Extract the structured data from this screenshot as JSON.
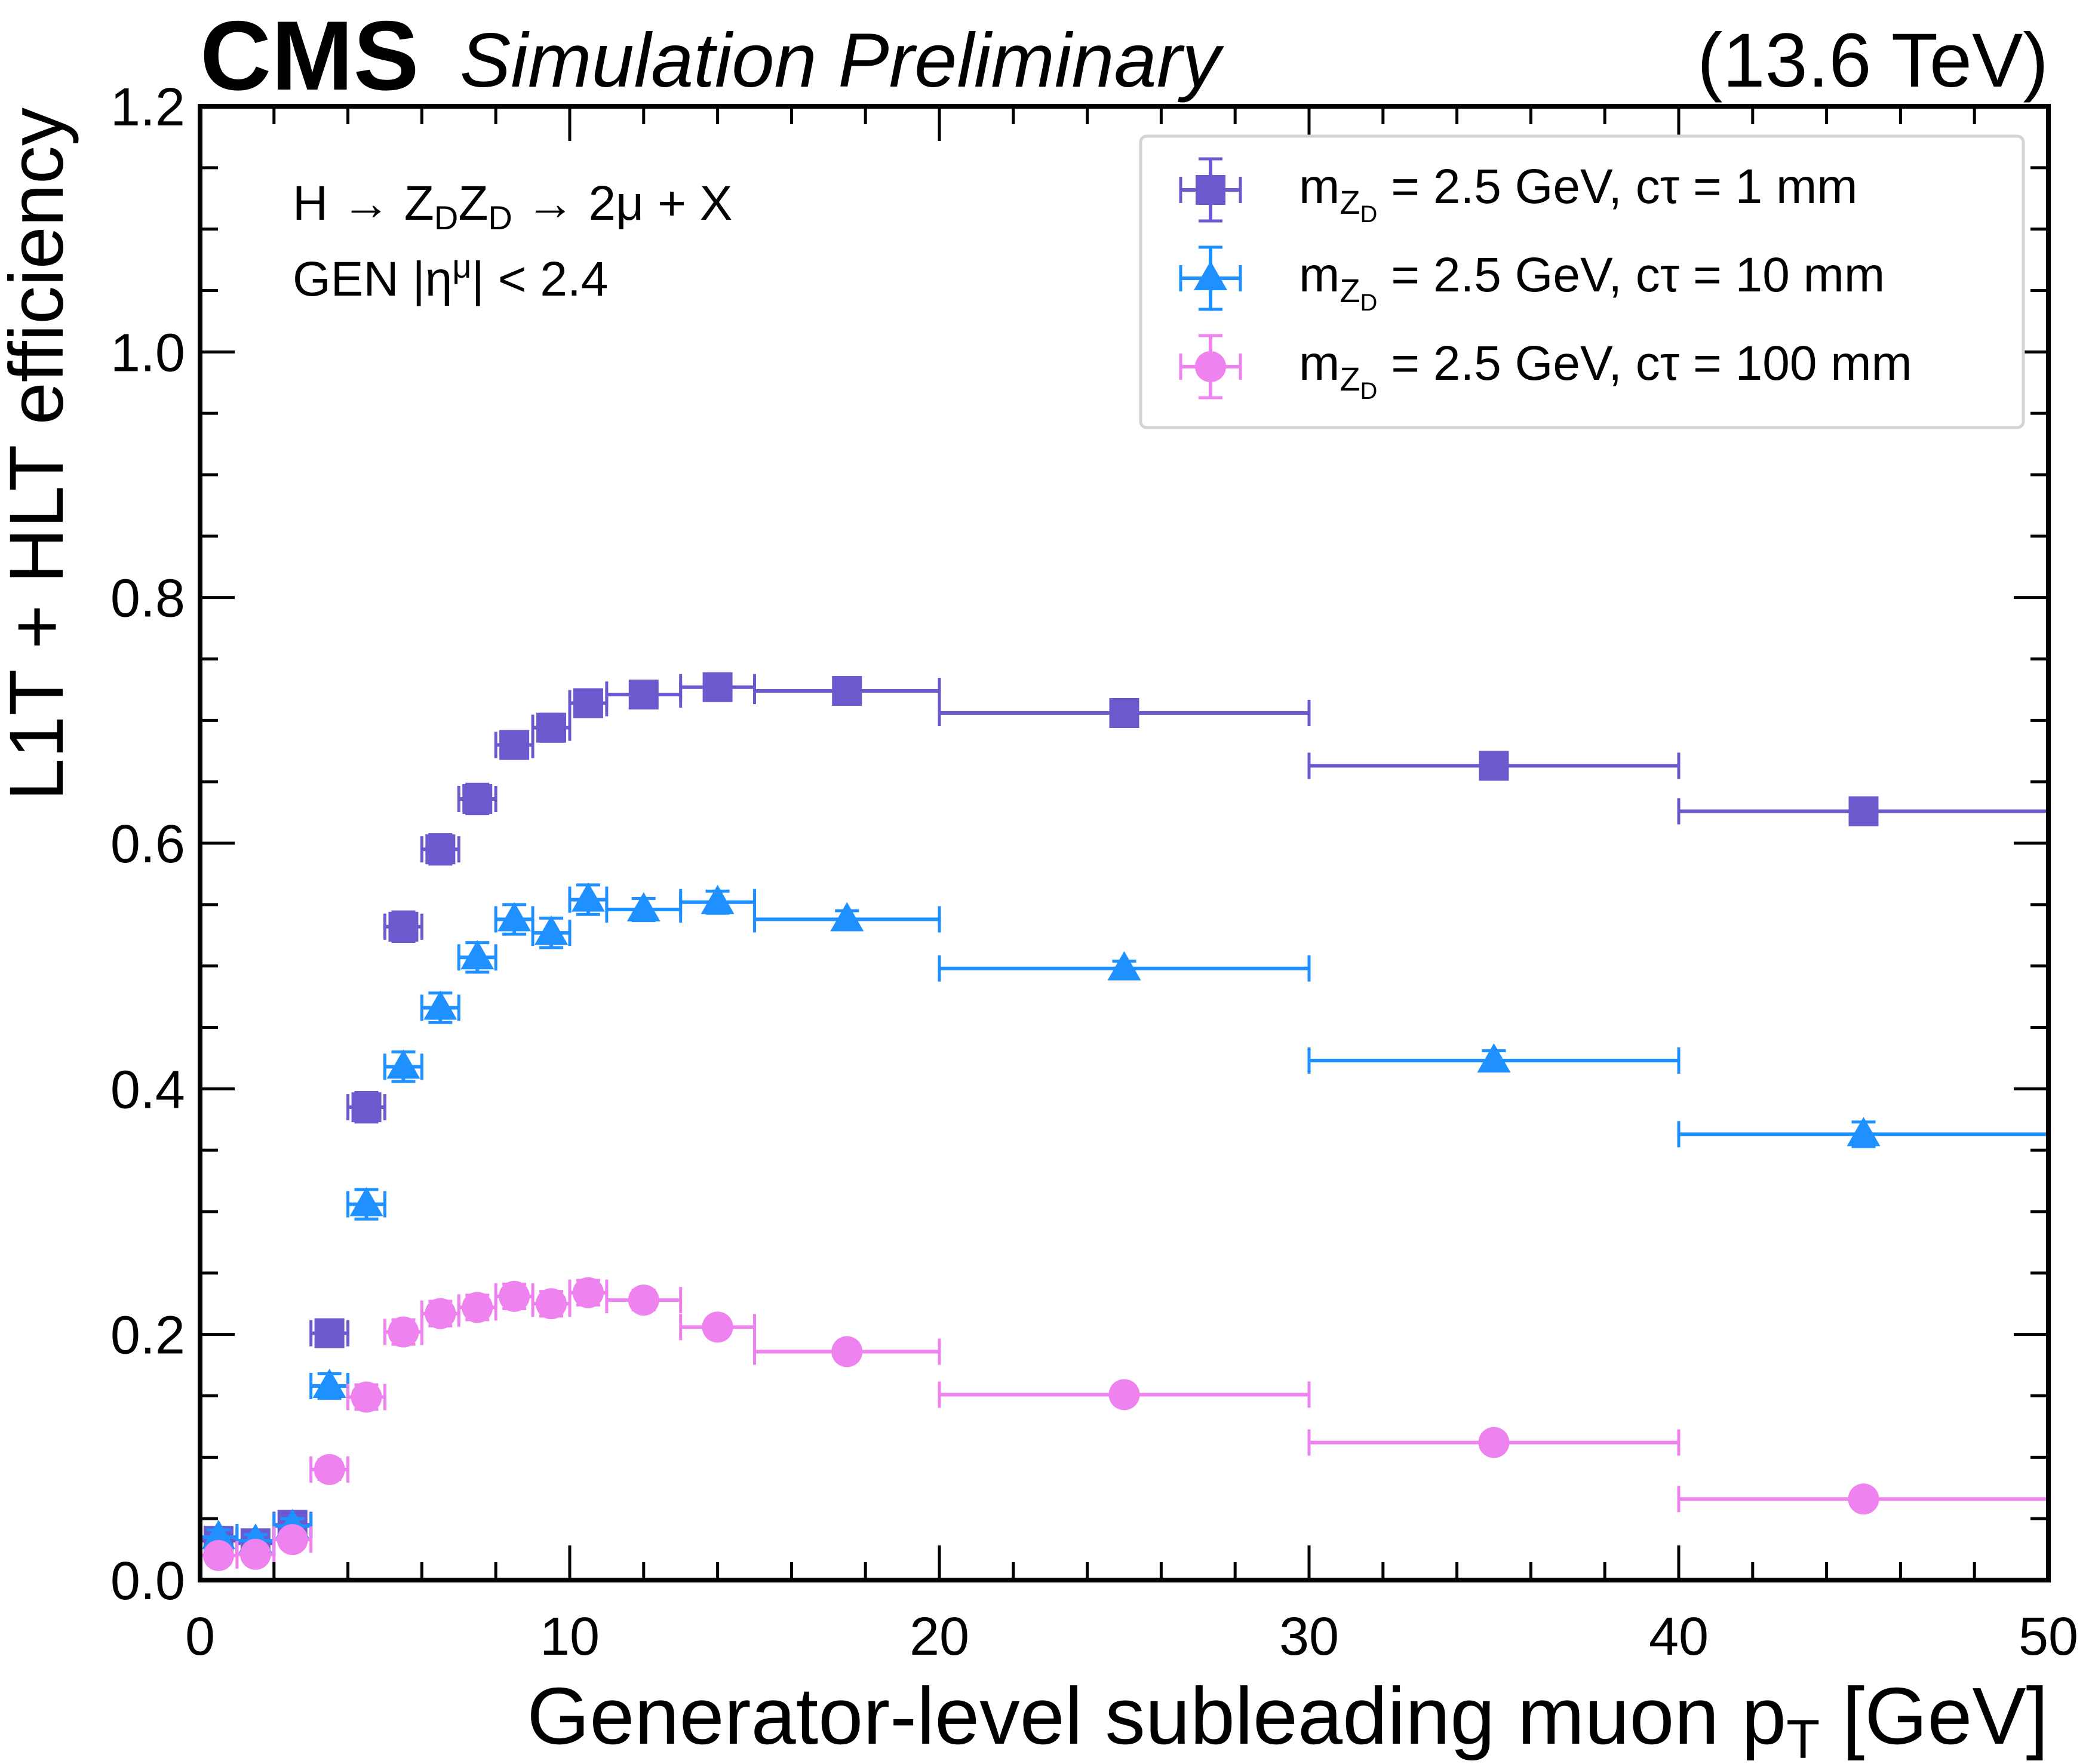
{
  "header": {
    "experiment": "CMS",
    "extra_text": "Simulation Preliminary",
    "energy": "(13.6 TeV)"
  },
  "annotations": {
    "process_main": "H → Z",
    "process_sub1": "D",
    "process_mid": "Z",
    "process_sub2": "D",
    "process_end": " → 2μ + X",
    "selection_main": "GEN |η",
    "selection_sup": "μ",
    "selection_end": "| < 2.4"
  },
  "chart_data": {
    "type": "scatter",
    "title": "",
    "xlabel_main": "Generator-level subleading muon p",
    "xlabel_sub": "T",
    "xlabel_end": " [GeV]",
    "ylabel": "L1T + HLT efficiency",
    "xlim": [
      0,
      50
    ],
    "ylim": [
      0,
      1.2
    ],
    "x_ticks": [
      "0",
      "10",
      "20",
      "30",
      "40",
      "50"
    ],
    "y_ticks": [
      "0.0",
      "0.2",
      "0.4",
      "0.6",
      "0.8",
      "1.0",
      "1.2"
    ],
    "legend_position": "top-right",
    "x": [
      0.5,
      1.5,
      2.5,
      3.5,
      4.5,
      5.5,
      6.5,
      7.5,
      8.5,
      9.5,
      10.5,
      12,
      14,
      17.5,
      25,
      35,
      45
    ],
    "x_low": [
      0,
      1,
      2,
      3,
      4,
      5,
      6,
      7,
      8,
      9,
      10,
      11,
      13,
      15,
      20,
      30,
      40
    ],
    "x_high": [
      1,
      2,
      3,
      4,
      5,
      6,
      7,
      8,
      9,
      10,
      11,
      13,
      15,
      20,
      30,
      40,
      50
    ],
    "series": [
      {
        "name": "ct1",
        "legend_pre": "m",
        "legend_sub": "Z",
        "legend_subsub": "D",
        "legend_post": " = 2.5 GeV, cτ = 1 mm",
        "color": "#6a5acd",
        "marker": "square",
        "values": [
          0.032,
          0.03,
          0.045,
          0.201,
          0.385,
          0.532,
          0.595,
          0.636,
          0.68,
          0.694,
          0.714,
          0.721,
          0.727,
          0.724,
          0.706,
          0.663,
          0.626
        ],
        "y_err": [
          0.006,
          0.005,
          0.006,
          0.01,
          0.012,
          0.012,
          0.012,
          0.012,
          0.011,
          0.011,
          0.01,
          0.008,
          0.008,
          0.006,
          0.006,
          0.008,
          0.01
        ]
      },
      {
        "name": "ct10",
        "legend_pre": "m",
        "legend_sub": "Z",
        "legend_subsub": "D",
        "legend_post": " = 2.5 GeV, cτ = 10 mm",
        "color": "#1e90ff",
        "marker": "triangle",
        "values": [
          0.035,
          0.032,
          0.044,
          0.158,
          0.306,
          0.418,
          0.466,
          0.507,
          0.538,
          0.527,
          0.554,
          0.546,
          0.552,
          0.538,
          0.498,
          0.423,
          0.363
        ],
        "y_err": [
          0.006,
          0.005,
          0.006,
          0.01,
          0.012,
          0.012,
          0.012,
          0.012,
          0.012,
          0.012,
          0.012,
          0.009,
          0.009,
          0.007,
          0.006,
          0.008,
          0.01
        ]
      },
      {
        "name": "ct100",
        "legend_pre": "m",
        "legend_sub": "Z",
        "legend_subsub": "D",
        "legend_post": " = 2.5 GeV, cτ = 100 mm",
        "color": "#ee82ee",
        "marker": "circle",
        "values": [
          0.02,
          0.021,
          0.033,
          0.09,
          0.149,
          0.202,
          0.217,
          0.222,
          0.231,
          0.225,
          0.234,
          0.228,
          0.206,
          0.186,
          0.151,
          0.112,
          0.066
        ],
        "y_err": [
          0.005,
          0.004,
          0.005,
          0.008,
          0.01,
          0.01,
          0.01,
          0.01,
          0.01,
          0.01,
          0.01,
          0.008,
          0.007,
          0.005,
          0.004,
          0.005,
          0.005
        ]
      }
    ]
  }
}
